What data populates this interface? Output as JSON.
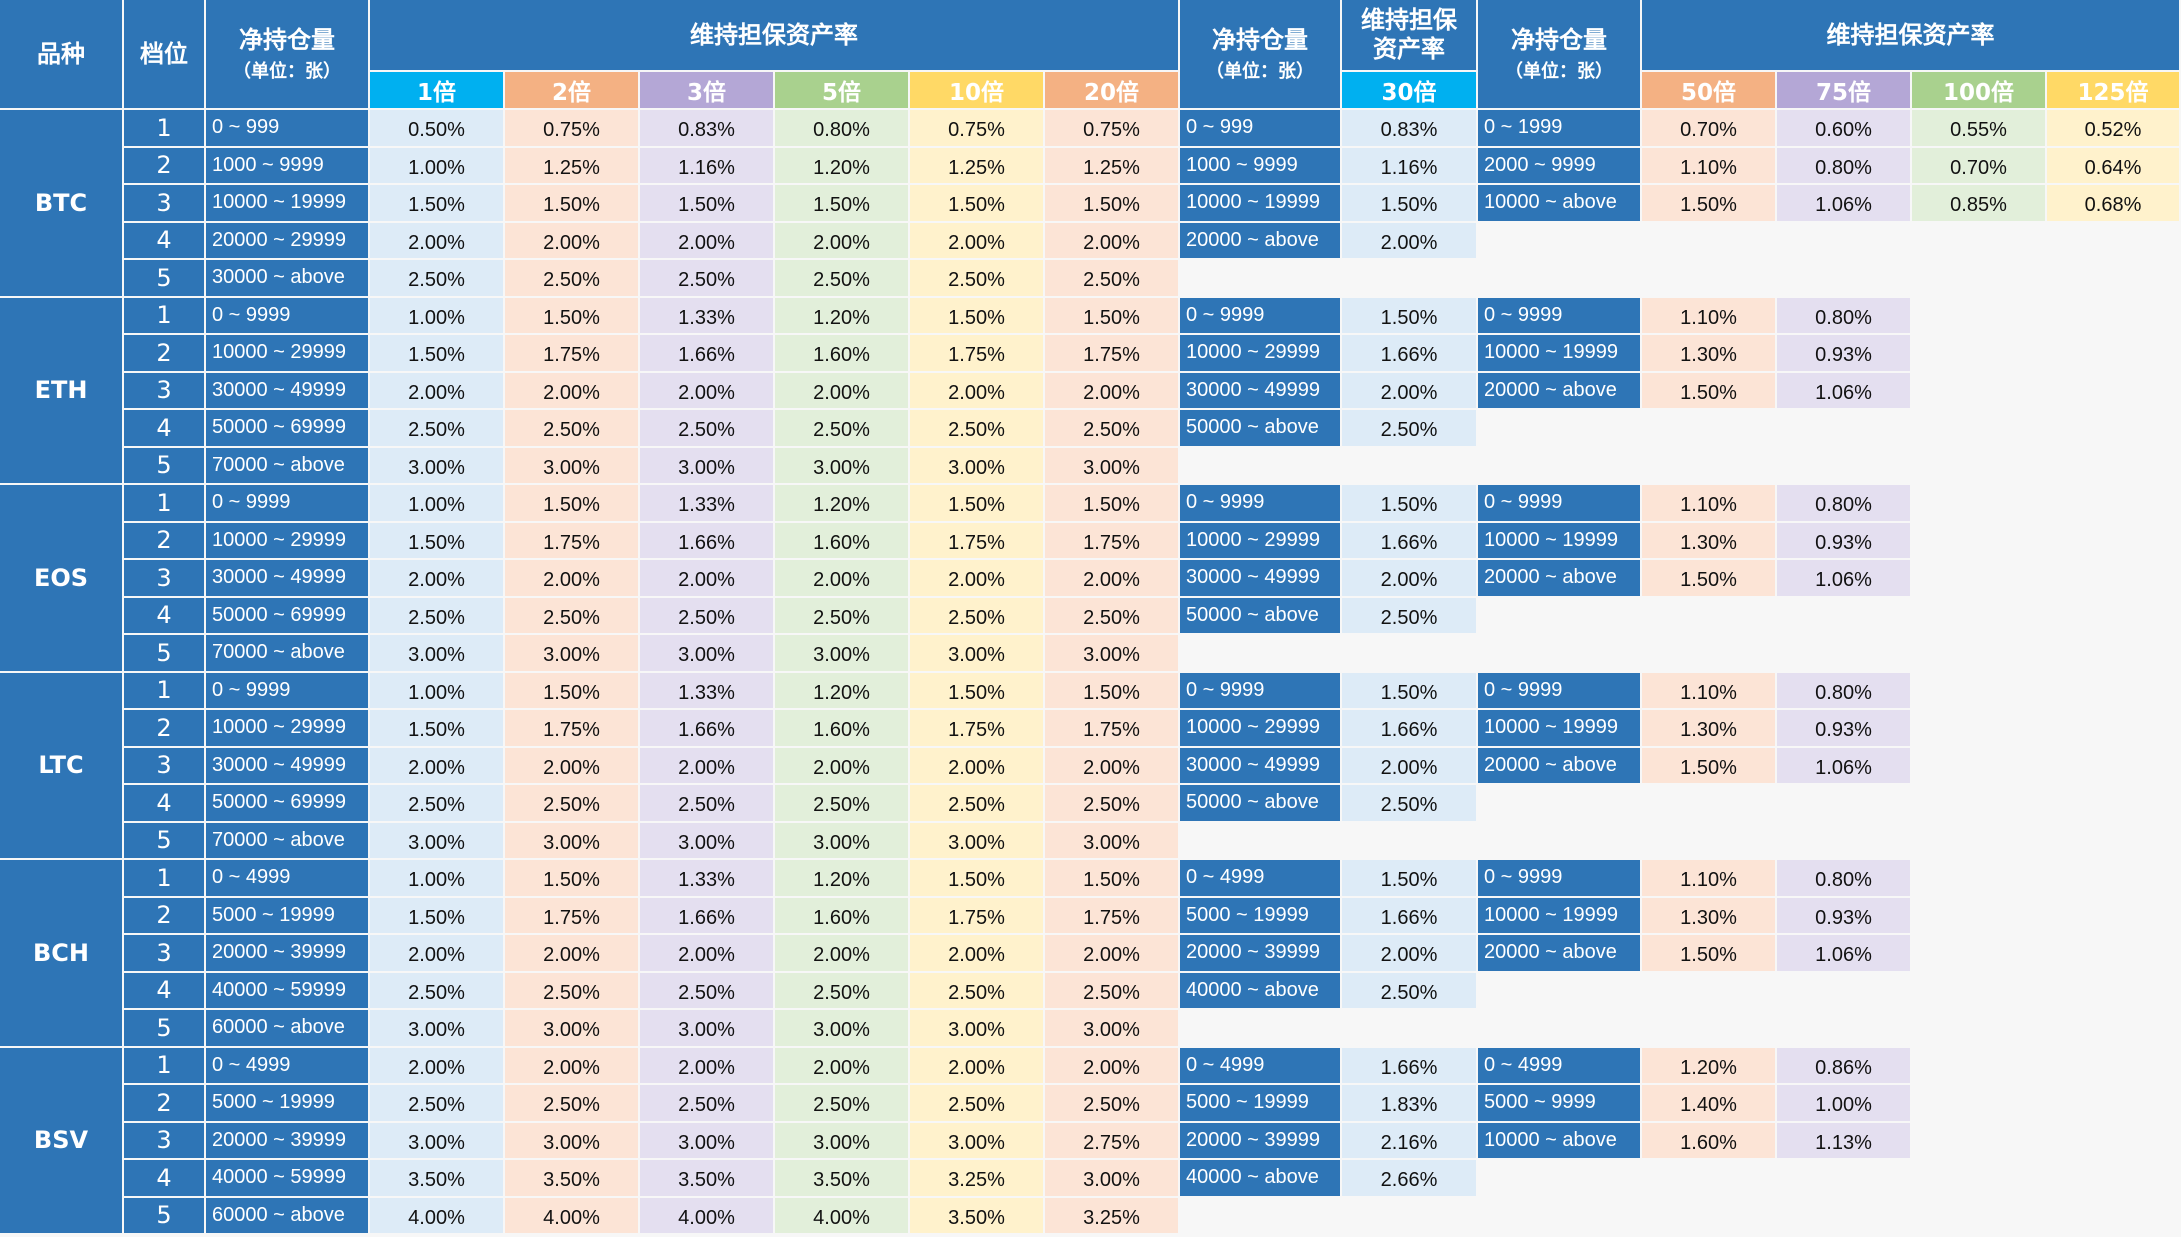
{
  "headers": {
    "symbol": "品种",
    "tier": "档位",
    "position_title": "净持仓量",
    "position_unit": "（单位：张）",
    "margin_rate": "维持担保资产率",
    "margin_rate_30_line1": "维持担保",
    "margin_rate_30_line2": "资产率"
  },
  "leverage_labels": {
    "g1": [
      "1倍",
      "2倍",
      "3倍",
      "5倍",
      "10倍",
      "20倍"
    ],
    "g2": [
      "30倍"
    ],
    "g3": [
      "50倍",
      "75倍",
      "100倍",
      "125倍"
    ]
  },
  "leverage_colors": {
    "g1": [
      "#00b0f0",
      "#f4b183",
      "#b4a7d6",
      "#a9d18e",
      "#ffd966",
      "#f4b183"
    ],
    "g2": [
      "#00b0f0"
    ],
    "g3": [
      "#f4b183",
      "#b4a7d6",
      "#a9d18e",
      "#ffd966"
    ]
  },
  "cell_colors": {
    "g1": [
      "#ddebf7",
      "#fce4d6",
      "#e4dff0",
      "#e2efda",
      "#fff2cc",
      "#fce4d6"
    ],
    "g2": [
      "#ddebf7"
    ],
    "g3": [
      "#fce4d6",
      "#e4dff0",
      "#e2efda",
      "#fff2cc"
    ]
  },
  "symbols": [
    {
      "name": "BTC",
      "tiers": [
        {
          "tier": "1",
          "range": "0 ~ 999",
          "rates": [
            "0.50%",
            "0.75%",
            "0.83%",
            "0.80%",
            "0.75%",
            "0.75%"
          ]
        },
        {
          "tier": "2",
          "range": "1000 ~ 9999",
          "rates": [
            "1.00%",
            "1.25%",
            "1.16%",
            "1.20%",
            "1.25%",
            "1.25%"
          ]
        },
        {
          "tier": "3",
          "range": "10000 ~ 19999",
          "rates": [
            "1.50%",
            "1.50%",
            "1.50%",
            "1.50%",
            "1.50%",
            "1.50%"
          ]
        },
        {
          "tier": "4",
          "range": "20000 ~ 29999",
          "rates": [
            "2.00%",
            "2.00%",
            "2.00%",
            "2.00%",
            "2.00%",
            "2.00%"
          ]
        },
        {
          "tier": "5",
          "range": "30000 ~ above",
          "rates": [
            "2.50%",
            "2.50%",
            "2.50%",
            "2.50%",
            "2.50%",
            "2.50%"
          ]
        }
      ],
      "g2": [
        {
          "range": "0 ~ 999",
          "rate": "0.83%"
        },
        {
          "range": "1000 ~ 9999",
          "rate": "1.16%"
        },
        {
          "range": "10000 ~ 19999",
          "rate": "1.50%"
        },
        {
          "range": "20000 ~ above",
          "rate": "2.00%"
        }
      ],
      "g3": [
        {
          "range": "0 ~ 1999",
          "rates": [
            "0.70%",
            "0.60%",
            "0.55%",
            "0.52%"
          ]
        },
        {
          "range": "2000 ~ 9999",
          "rates": [
            "1.10%",
            "0.80%",
            "0.70%",
            "0.64%"
          ]
        },
        {
          "range": "10000 ~ above",
          "rates": [
            "1.50%",
            "1.06%",
            "0.85%",
            "0.68%"
          ]
        }
      ]
    },
    {
      "name": "ETH",
      "tiers": [
        {
          "tier": "1",
          "range": "0 ~ 9999",
          "rates": [
            "1.00%",
            "1.50%",
            "1.33%",
            "1.20%",
            "1.50%",
            "1.50%"
          ]
        },
        {
          "tier": "2",
          "range": "10000 ~ 29999",
          "rates": [
            "1.50%",
            "1.75%",
            "1.66%",
            "1.60%",
            "1.75%",
            "1.75%"
          ]
        },
        {
          "tier": "3",
          "range": "30000 ~ 49999",
          "rates": [
            "2.00%",
            "2.00%",
            "2.00%",
            "2.00%",
            "2.00%",
            "2.00%"
          ]
        },
        {
          "tier": "4",
          "range": "50000 ~ 69999",
          "rates": [
            "2.50%",
            "2.50%",
            "2.50%",
            "2.50%",
            "2.50%",
            "2.50%"
          ]
        },
        {
          "tier": "5",
          "range": "70000 ~ above",
          "rates": [
            "3.00%",
            "3.00%",
            "3.00%",
            "3.00%",
            "3.00%",
            "3.00%"
          ]
        }
      ],
      "g2": [
        {
          "range": "0 ~ 9999",
          "rate": "1.50%"
        },
        {
          "range": "10000 ~ 29999",
          "rate": "1.66%"
        },
        {
          "range": "30000 ~ 49999",
          "rate": "2.00%"
        },
        {
          "range": "50000 ~ above",
          "rate": "2.50%"
        }
      ],
      "g3": [
        {
          "range": "0 ~ 9999",
          "rates": [
            "1.10%",
            "0.80%"
          ]
        },
        {
          "range": "10000 ~ 19999",
          "rates": [
            "1.30%",
            "0.93%"
          ]
        },
        {
          "range": "20000 ~ above",
          "rates": [
            "1.50%",
            "1.06%"
          ]
        }
      ]
    },
    {
      "name": "EOS",
      "tiers": [
        {
          "tier": "1",
          "range": "0 ~ 9999",
          "rates": [
            "1.00%",
            "1.50%",
            "1.33%",
            "1.20%",
            "1.50%",
            "1.50%"
          ]
        },
        {
          "tier": "2",
          "range": "10000 ~ 29999",
          "rates": [
            "1.50%",
            "1.75%",
            "1.66%",
            "1.60%",
            "1.75%",
            "1.75%"
          ]
        },
        {
          "tier": "3",
          "range": "30000 ~ 49999",
          "rates": [
            "2.00%",
            "2.00%",
            "2.00%",
            "2.00%",
            "2.00%",
            "2.00%"
          ]
        },
        {
          "tier": "4",
          "range": "50000 ~ 69999",
          "rates": [
            "2.50%",
            "2.50%",
            "2.50%",
            "2.50%",
            "2.50%",
            "2.50%"
          ]
        },
        {
          "tier": "5",
          "range": "70000 ~ above",
          "rates": [
            "3.00%",
            "3.00%",
            "3.00%",
            "3.00%",
            "3.00%",
            "3.00%"
          ]
        }
      ],
      "g2": [
        {
          "range": "0 ~ 9999",
          "rate": "1.50%"
        },
        {
          "range": "10000 ~ 29999",
          "rate": "1.66%"
        },
        {
          "range": "30000 ~ 49999",
          "rate": "2.00%"
        },
        {
          "range": "50000 ~ above",
          "rate": "2.50%"
        }
      ],
      "g3": [
        {
          "range": "0 ~ 9999",
          "rates": [
            "1.10%",
            "0.80%"
          ]
        },
        {
          "range": "10000 ~ 19999",
          "rates": [
            "1.30%",
            "0.93%"
          ]
        },
        {
          "range": "20000 ~ above",
          "rates": [
            "1.50%",
            "1.06%"
          ]
        }
      ]
    },
    {
      "name": "LTC",
      "tiers": [
        {
          "tier": "1",
          "range": "0 ~ 9999",
          "rates": [
            "1.00%",
            "1.50%",
            "1.33%",
            "1.20%",
            "1.50%",
            "1.50%"
          ]
        },
        {
          "tier": "2",
          "range": "10000 ~ 29999",
          "rates": [
            "1.50%",
            "1.75%",
            "1.66%",
            "1.60%",
            "1.75%",
            "1.75%"
          ]
        },
        {
          "tier": "3",
          "range": "30000 ~ 49999",
          "rates": [
            "2.00%",
            "2.00%",
            "2.00%",
            "2.00%",
            "2.00%",
            "2.00%"
          ]
        },
        {
          "tier": "4",
          "range": "50000 ~ 69999",
          "rates": [
            "2.50%",
            "2.50%",
            "2.50%",
            "2.50%",
            "2.50%",
            "2.50%"
          ]
        },
        {
          "tier": "5",
          "range": "70000 ~ above",
          "rates": [
            "3.00%",
            "3.00%",
            "3.00%",
            "3.00%",
            "3.00%",
            "3.00%"
          ]
        }
      ],
      "g2": [
        {
          "range": "0 ~ 9999",
          "rate": "1.50%"
        },
        {
          "range": "10000 ~ 29999",
          "rate": "1.66%"
        },
        {
          "range": "30000 ~ 49999",
          "rate": "2.00%"
        },
        {
          "range": "50000 ~ above",
          "rate": "2.50%"
        }
      ],
      "g3": [
        {
          "range": "0 ~ 9999",
          "rates": [
            "1.10%",
            "0.80%"
          ]
        },
        {
          "range": "10000 ~ 19999",
          "rates": [
            "1.30%",
            "0.93%"
          ]
        },
        {
          "range": "20000 ~ above",
          "rates": [
            "1.50%",
            "1.06%"
          ]
        }
      ]
    },
    {
      "name": "BCH",
      "tiers": [
        {
          "tier": "1",
          "range": "0 ~ 4999",
          "rates": [
            "1.00%",
            "1.50%",
            "1.33%",
            "1.20%",
            "1.50%",
            "1.50%"
          ]
        },
        {
          "tier": "2",
          "range": "5000 ~ 19999",
          "rates": [
            "1.50%",
            "1.75%",
            "1.66%",
            "1.60%",
            "1.75%",
            "1.75%"
          ]
        },
        {
          "tier": "3",
          "range": "20000 ~ 39999",
          "rates": [
            "2.00%",
            "2.00%",
            "2.00%",
            "2.00%",
            "2.00%",
            "2.00%"
          ]
        },
        {
          "tier": "4",
          "range": "40000 ~ 59999",
          "rates": [
            "2.50%",
            "2.50%",
            "2.50%",
            "2.50%",
            "2.50%",
            "2.50%"
          ]
        },
        {
          "tier": "5",
          "range": "60000 ~ above",
          "rates": [
            "3.00%",
            "3.00%",
            "3.00%",
            "3.00%",
            "3.00%",
            "3.00%"
          ]
        }
      ],
      "g2": [
        {
          "range": "0 ~ 4999",
          "rate": "1.50%"
        },
        {
          "range": "5000 ~ 19999",
          "rate": "1.66%"
        },
        {
          "range": "20000 ~ 39999",
          "rate": "2.00%"
        },
        {
          "range": "40000 ~ above",
          "rate": "2.50%"
        }
      ],
      "g3": [
        {
          "range": "0 ~ 9999",
          "rates": [
            "1.10%",
            "0.80%"
          ]
        },
        {
          "range": "10000 ~ 19999",
          "rates": [
            "1.30%",
            "0.93%"
          ]
        },
        {
          "range": "20000 ~ above",
          "rates": [
            "1.50%",
            "1.06%"
          ]
        }
      ]
    },
    {
      "name": "BSV",
      "tiers": [
        {
          "tier": "1",
          "range": "0 ~ 4999",
          "rates": [
            "2.00%",
            "2.00%",
            "2.00%",
            "2.00%",
            "2.00%",
            "2.00%"
          ]
        },
        {
          "tier": "2",
          "range": "5000 ~ 19999",
          "rates": [
            "2.50%",
            "2.50%",
            "2.50%",
            "2.50%",
            "2.50%",
            "2.50%"
          ]
        },
        {
          "tier": "3",
          "range": "20000 ~ 39999",
          "rates": [
            "3.00%",
            "3.00%",
            "3.00%",
            "3.00%",
            "3.00%",
            "2.75%"
          ]
        },
        {
          "tier": "4",
          "range": "40000 ~ 59999",
          "rates": [
            "3.50%",
            "3.50%",
            "3.50%",
            "3.50%",
            "3.25%",
            "3.00%"
          ]
        },
        {
          "tier": "5",
          "range": "60000 ~ above",
          "rates": [
            "4.00%",
            "4.00%",
            "4.00%",
            "4.00%",
            "3.50%",
            "3.25%"
          ]
        }
      ],
      "g2": [
        {
          "range": "0 ~ 4999",
          "rate": "1.66%"
        },
        {
          "range": "5000 ~ 19999",
          "rate": "1.83%"
        },
        {
          "range": "20000 ~ 39999",
          "rate": "2.16%"
        },
        {
          "range": "40000 ~ above",
          "rate": "2.66%"
        }
      ],
      "g3": [
        {
          "range": "0 ~ 4999",
          "rates": [
            "1.20%",
            "0.86%"
          ]
        },
        {
          "range": "5000 ~ 9999",
          "rates": [
            "1.40%",
            "1.00%"
          ]
        },
        {
          "range": "10000 ~ above",
          "rates": [
            "1.60%",
            "1.13%"
          ]
        }
      ]
    }
  ]
}
